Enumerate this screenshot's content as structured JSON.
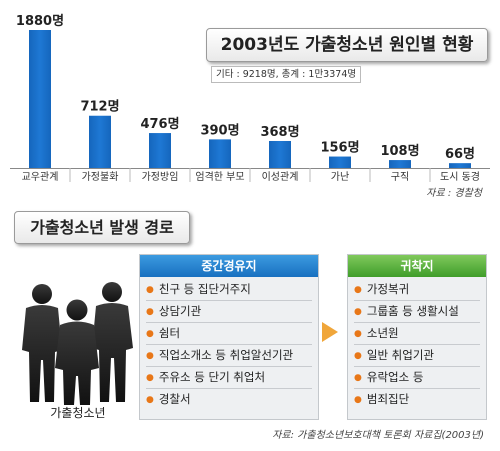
{
  "chart_data": {
    "type": "bar",
    "title": "2003년도 가출청소년 원인별 현황",
    "note": "기타 : 9218명, 총계 : 1만3374명",
    "source": "자료 : 경찰청",
    "unit_suffix": "명",
    "categories": [
      "교우관계",
      "가정불화",
      "가정방임",
      "엄격한 부모",
      "이성관계",
      "가난",
      "구직",
      "도시 동경"
    ],
    "values": [
      1880,
      712,
      476,
      390,
      368,
      156,
      108,
      66
    ],
    "value_labels": [
      "1880명",
      "712명",
      "476명",
      "390명",
      "368명",
      "156명",
      "108명",
      "66명"
    ],
    "xlabel": "",
    "ylabel": "",
    "ylim": [
      0,
      1880
    ],
    "grid": false,
    "bar_color": "#1e78d4"
  },
  "route": {
    "title": "가출청소년 발생 경로",
    "person_label": "가출청소년",
    "transit": {
      "header": "중간경유지",
      "items": [
        "친구 등 집단거주지",
        "상담기관",
        "쉼터",
        "직업소개소 등 취업알선기관",
        "주유소 등 단기 취업처",
        "경찰서"
      ]
    },
    "destination": {
      "header": "귀착지",
      "items": [
        "가정복귀",
        "그룹홈 등 생활시설",
        "소년원",
        "일반 취업기관",
        "유락업소 등",
        "범죄집단"
      ]
    },
    "source": "자료: 가출청소년보호대책 토론회 자료집(2003년)"
  }
}
